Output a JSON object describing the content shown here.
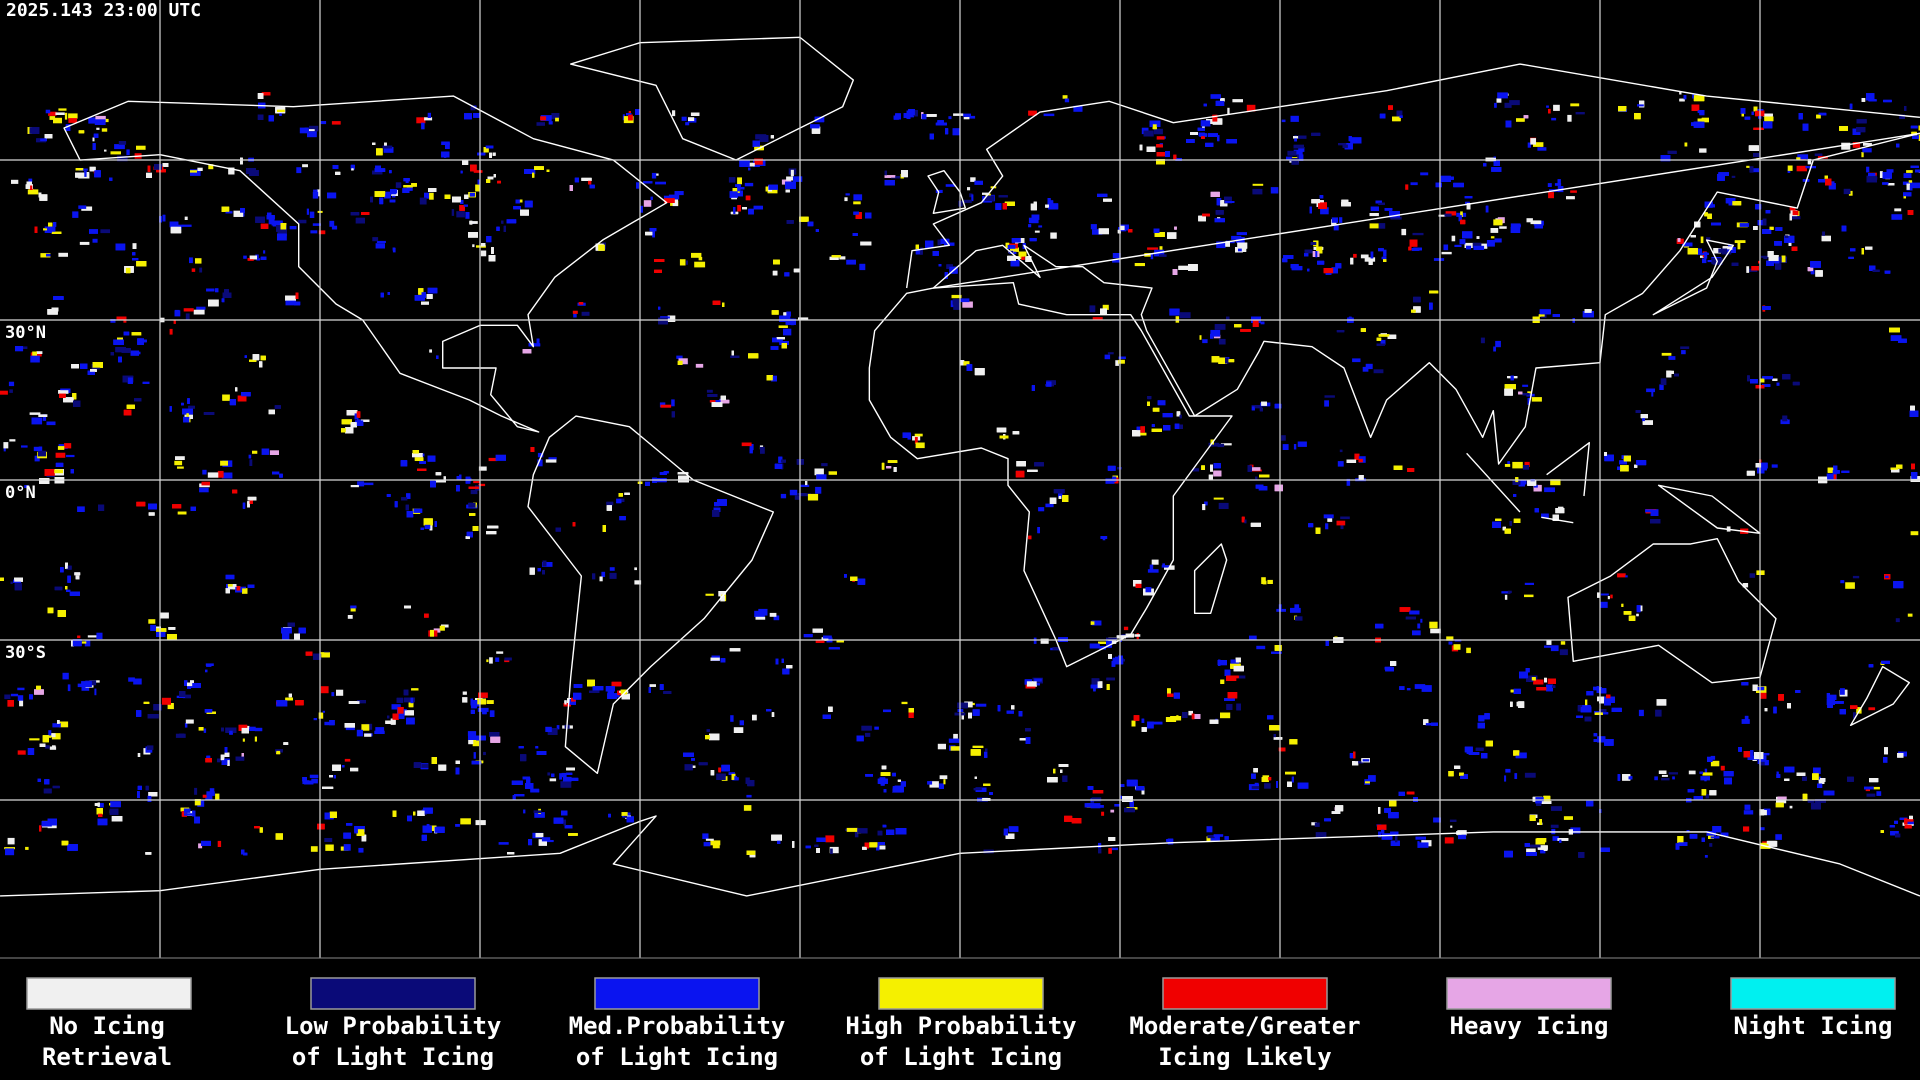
{
  "timestamp": "2025.143 23:00 UTC",
  "latitude_labels": [
    "30°N",
    "0°N",
    "30°S"
  ],
  "legend": [
    {
      "label": [
        "No Icing",
        "Retrieval"
      ],
      "color": "#f0f0f0"
    },
    {
      "label": [
        "Low Probability",
        "of Light Icing"
      ],
      "color": "#0a0a78"
    },
    {
      "label": [
        "Med.Probability",
        "of Light Icing"
      ],
      "color": "#0a14f0"
    },
    {
      "label": [
        "High Probability",
        "of Light Icing"
      ],
      "color": "#f5f000"
    },
    {
      "label": [
        "Moderate/Greater",
        "Icing Likely"
      ],
      "color": "#f00000"
    },
    {
      "label": [
        "Heavy Icing"
      ],
      "color": "#e6a6e6"
    },
    {
      "label": [
        "Night Icing"
      ],
      "color": "#00f0f0"
    }
  ]
}
